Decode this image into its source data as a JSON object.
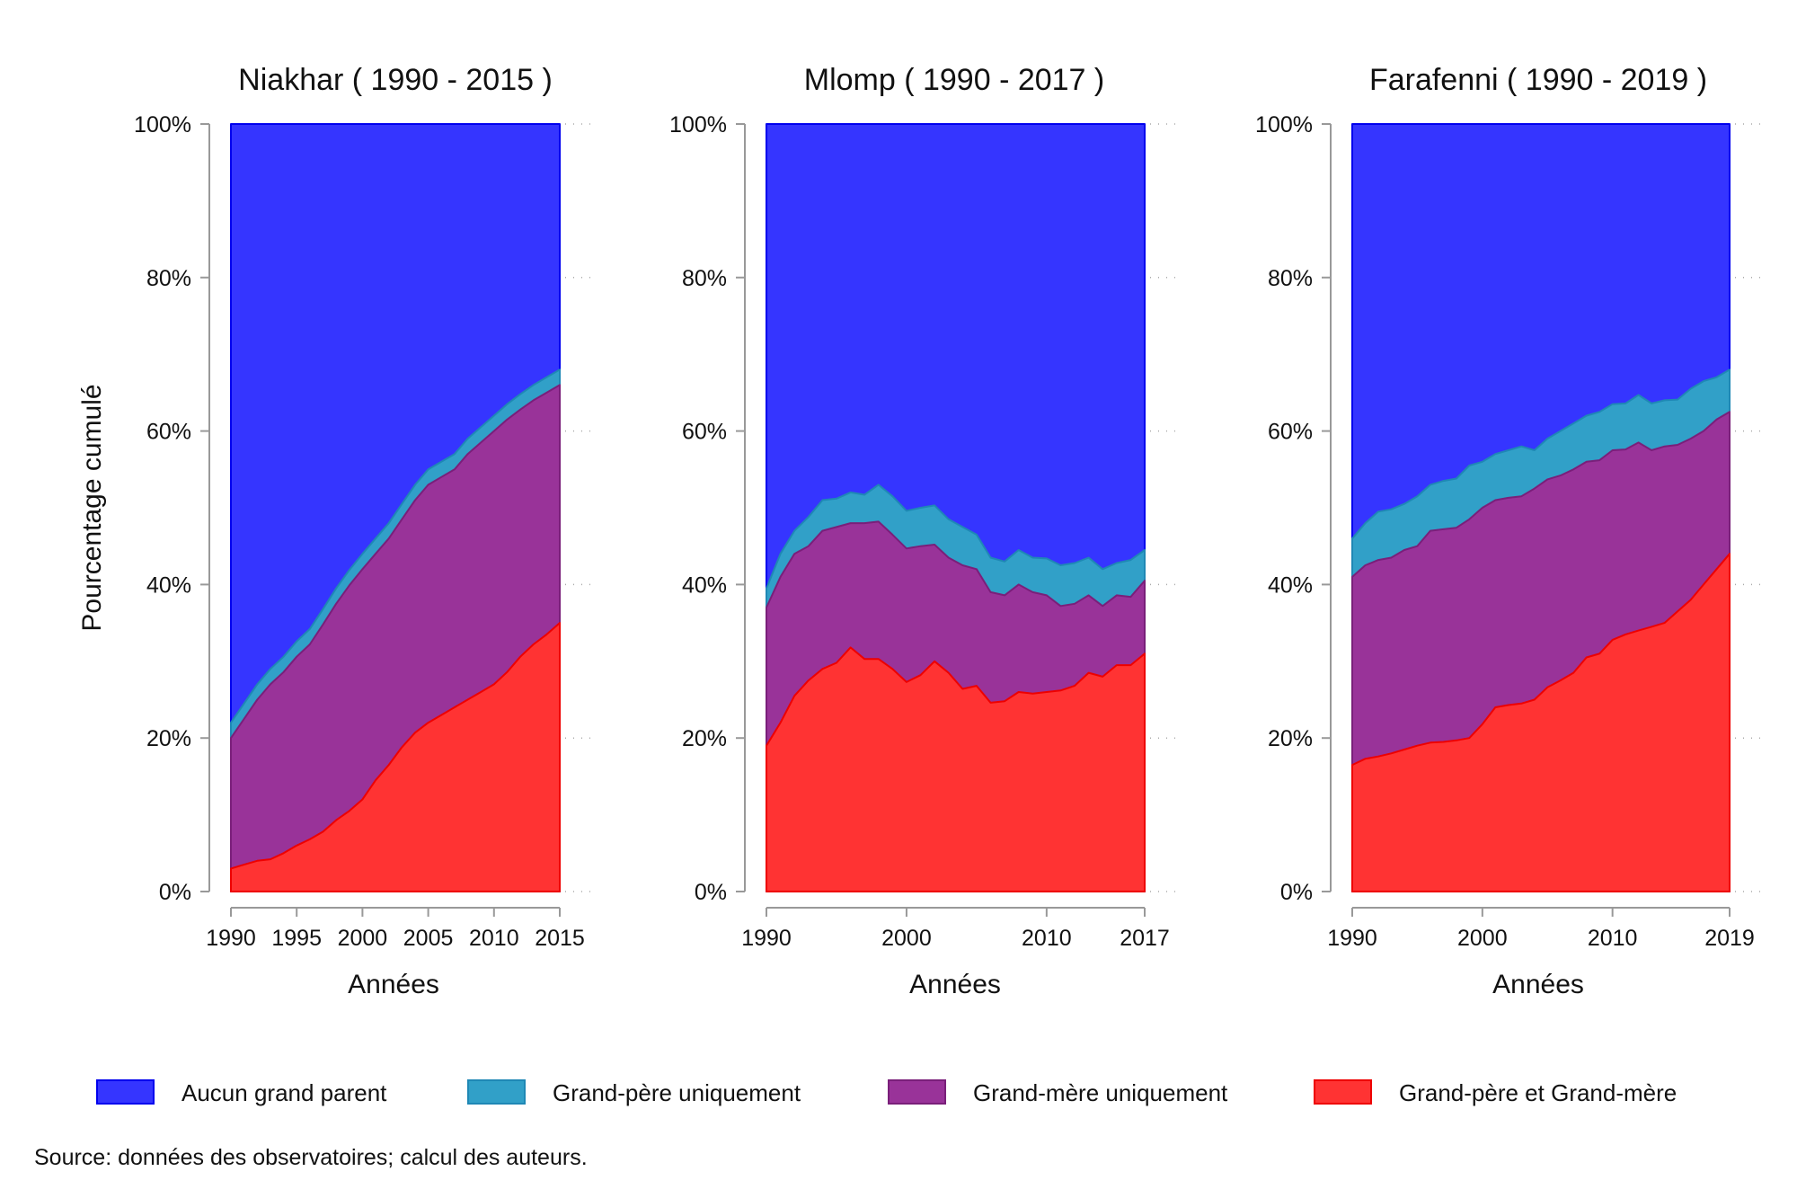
{
  "colors": {
    "aucun": "#3535ff",
    "aucun_stroke": "#0000ee",
    "pere": "#31a0c8",
    "pere_stroke": "#1f88b5",
    "mere": "#993399",
    "mere_stroke": "#7a1f7a",
    "both": "#ff3333",
    "both_stroke": "#ee0000",
    "axis": "#999999"
  },
  "legend": {
    "items": [
      {
        "label": "Aucun grand parent",
        "color": "#3535ff",
        "stroke": "#0000ee"
      },
      {
        "label": "Grand-père uniquement",
        "color": "#31a0c8",
        "stroke": "#1f88b5"
      },
      {
        "label": "Grand-mère uniquement",
        "color": "#993399",
        "stroke": "#7a1f7a"
      },
      {
        "label": "Grand-père et Grand-mère",
        "color": "#ff3333",
        "stroke": "#ee0000"
      }
    ]
  },
  "source": "Source: données des observatoires; calcul des auteurs.",
  "chart_data": [
    {
      "type": "area",
      "stacked": true,
      "title": "Niakhar ( 1990 - 2015 )",
      "xlabel": "Années",
      "ylabel": "Pourcentage cumulé",
      "ylim": [
        0,
        100
      ],
      "yticks": [
        "0%",
        "20%",
        "40%",
        "60%",
        "80%",
        "100%"
      ],
      "xlim": [
        1990,
        2015
      ],
      "xticks": [
        "1990",
        "1995",
        "2000",
        "2005",
        "2010",
        "2015"
      ],
      "x": [
        1990,
        1991,
        1992,
        1993,
        1994,
        1995,
        1996,
        1997,
        1998,
        1999,
        2000,
        2001,
        2002,
        2003,
        2004,
        2005,
        2006,
        2007,
        2008,
        2009,
        2010,
        2011,
        2012,
        2013,
        2014,
        2015
      ],
      "series": [
        {
          "name": "Grand-père et Grand-mère",
          "values": [
            3,
            3.5,
            4,
            4.2,
            5,
            6,
            6.8,
            7.8,
            9.3,
            10.5,
            12,
            14.5,
            16.5,
            18.8,
            20.7,
            22,
            23,
            24,
            25,
            26,
            27,
            28.6,
            30.6,
            32.2,
            33.5,
            35
          ]
        },
        {
          "name": "Grand-mère uniquement",
          "values": [
            20,
            22.5,
            25,
            27,
            28.6,
            30.6,
            32.2,
            34.8,
            37.5,
            39.9,
            42,
            44,
            46,
            48.5,
            51,
            53,
            54,
            55,
            57,
            58.5,
            60,
            61.5,
            62.8,
            64,
            65,
            66
          ]
        },
        {
          "name": "Grand-père uniquement",
          "values": [
            22,
            24.5,
            27,
            29,
            30.6,
            32.6,
            34.2,
            36.8,
            39.5,
            41.9,
            44,
            46,
            48,
            50.5,
            53,
            55,
            56,
            57,
            59,
            60.5,
            62,
            63.5,
            64.8,
            66,
            67,
            68
          ]
        },
        {
          "name": "Aucun grand parent",
          "values": [
            100,
            100,
            100,
            100,
            100,
            100,
            100,
            100,
            100,
            100,
            100,
            100,
            100,
            100,
            100,
            100,
            100,
            100,
            100,
            100,
            100,
            100,
            100,
            100,
            100,
            100
          ]
        }
      ]
    },
    {
      "type": "area",
      "stacked": true,
      "title": "Mlomp ( 1990 - 2017 )",
      "xlabel": "Années",
      "ylim": [
        0,
        100
      ],
      "yticks": [
        "0%",
        "20%",
        "40%",
        "60%",
        "80%",
        "100%"
      ],
      "xlim": [
        1990,
        2017
      ],
      "xticks": [
        "1990",
        "2000",
        "2010",
        "2017"
      ],
      "x": [
        1990,
        1991,
        1992,
        1993,
        1994,
        1995,
        1996,
        1997,
        1998,
        1999,
        2000,
        2001,
        2002,
        2003,
        2004,
        2005,
        2006,
        2007,
        2008,
        2009,
        2010,
        2011,
        2012,
        2013,
        2014,
        2015,
        2016,
        2017
      ],
      "series": [
        {
          "name": "Grand-père et Grand-mère",
          "values": [
            19,
            22,
            25.5,
            27.5,
            29,
            29.8,
            31.8,
            30.3,
            30.3,
            29,
            27.3,
            28.2,
            30,
            28.5,
            26.4,
            26.8,
            24.6,
            24.8,
            26,
            25.8,
            26,
            26.2,
            26.8,
            28.5,
            28,
            29.5,
            29.5,
            31
          ]
        },
        {
          "name": "Grand-mère uniquement",
          "values": [
            37,
            41,
            44,
            45,
            47,
            47.5,
            48,
            48,
            48.2,
            46.5,
            44.7,
            45,
            45.2,
            43.5,
            42.5,
            42,
            39,
            38.6,
            40,
            39,
            38.6,
            37.2,
            37.5,
            38.6,
            37.2,
            38.6,
            38.4,
            40.5
          ]
        },
        {
          "name": "Grand-père uniquement",
          "values": [
            39.5,
            44,
            47,
            48.8,
            51,
            51.2,
            52,
            51.7,
            53,
            51.5,
            49.6,
            50,
            50.3,
            48.5,
            47.5,
            46.5,
            43.5,
            43,
            44.5,
            43.5,
            43.4,
            42.5,
            42.8,
            43.5,
            42,
            42.8,
            43.2,
            44.5
          ]
        },
        {
          "name": "Aucun grand parent",
          "values": [
            100,
            100,
            100,
            100,
            100,
            100,
            100,
            100,
            100,
            100,
            100,
            100,
            100,
            100,
            100,
            100,
            100,
            100,
            100,
            100,
            100,
            100,
            100,
            100,
            100,
            100,
            100,
            100
          ]
        }
      ]
    },
    {
      "type": "area",
      "stacked": true,
      "title": "Farafenni ( 1990 - 2019 )",
      "xlabel": "Années",
      "ylim": [
        0,
        100
      ],
      "yticks": [
        "0%",
        "20%",
        "40%",
        "60%",
        "80%",
        "100%"
      ],
      "xlim": [
        1990,
        2019
      ],
      "xticks": [
        "1990",
        "2000",
        "2010",
        "2019"
      ],
      "x": [
        1990,
        1991,
        1992,
        1993,
        1994,
        1995,
        1996,
        1997,
        1998,
        1999,
        2000,
        2001,
        2002,
        2003,
        2004,
        2005,
        2006,
        2007,
        2008,
        2009,
        2010,
        2011,
        2012,
        2013,
        2014,
        2015,
        2016,
        2017,
        2018,
        2019
      ],
      "series": [
        {
          "name": "Grand-père et Grand-mère",
          "values": [
            16.5,
            17.3,
            17.6,
            18,
            18.5,
            19,
            19.4,
            19.5,
            19.7,
            20,
            21.8,
            24,
            24.3,
            24.5,
            25,
            26.6,
            27.5,
            28.5,
            30.5,
            31,
            32.8,
            33.5,
            34,
            34.5,
            35,
            36.5,
            38,
            40,
            42,
            44
          ]
        },
        {
          "name": "Grand-mère uniquement",
          "values": [
            41,
            42.5,
            43.2,
            43.5,
            44.5,
            45,
            47,
            47.2,
            47.4,
            48.5,
            50,
            51,
            51.3,
            51.5,
            52.5,
            53.7,
            54.2,
            55,
            56,
            56.2,
            57.5,
            57.6,
            58.5,
            57.5,
            58,
            58.2,
            59,
            60,
            61.5,
            62.5
          ]
        },
        {
          "name": "Grand-père uniquement",
          "values": [
            46,
            48,
            49.5,
            49.8,
            50.5,
            51.5,
            53,
            53.5,
            53.8,
            55.5,
            56,
            57,
            57.5,
            58,
            57.5,
            59,
            60,
            61,
            62,
            62.5,
            63.5,
            63.6,
            64.7,
            63.6,
            64,
            64.1,
            65.5,
            66.5,
            67,
            68
          ]
        },
        {
          "name": "Aucun grand parent",
          "values": [
            100,
            100,
            100,
            100,
            100,
            100,
            100,
            100,
            100,
            100,
            100,
            100,
            100,
            100,
            100,
            100,
            100,
            100,
            100,
            100,
            100,
            100,
            100,
            100,
            100,
            100,
            100,
            100,
            100,
            100
          ]
        }
      ]
    }
  ]
}
